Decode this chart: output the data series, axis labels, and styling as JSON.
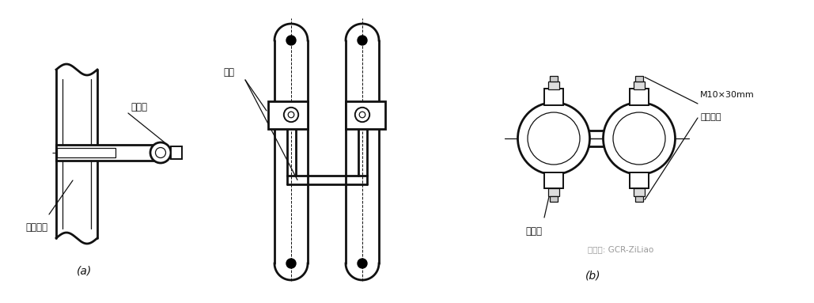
{
  "bg_color": "#ffffff",
  "line_color": "#111111",
  "label_a": "(a)",
  "label_b": "(b)",
  "text_lianjiexian": "连接线",
  "text_jinshu": "金属管道",
  "text_baoguo": "抱箍",
  "text_kuajiexian": "跨接线",
  "text_bolt1": "M10×30mm",
  "text_bolt2": "镀锌螺栓",
  "text_watermark": "微信号: GCR-ZiLiao",
  "figsize": [
    10.29,
    3.83
  ],
  "dpi": 100
}
